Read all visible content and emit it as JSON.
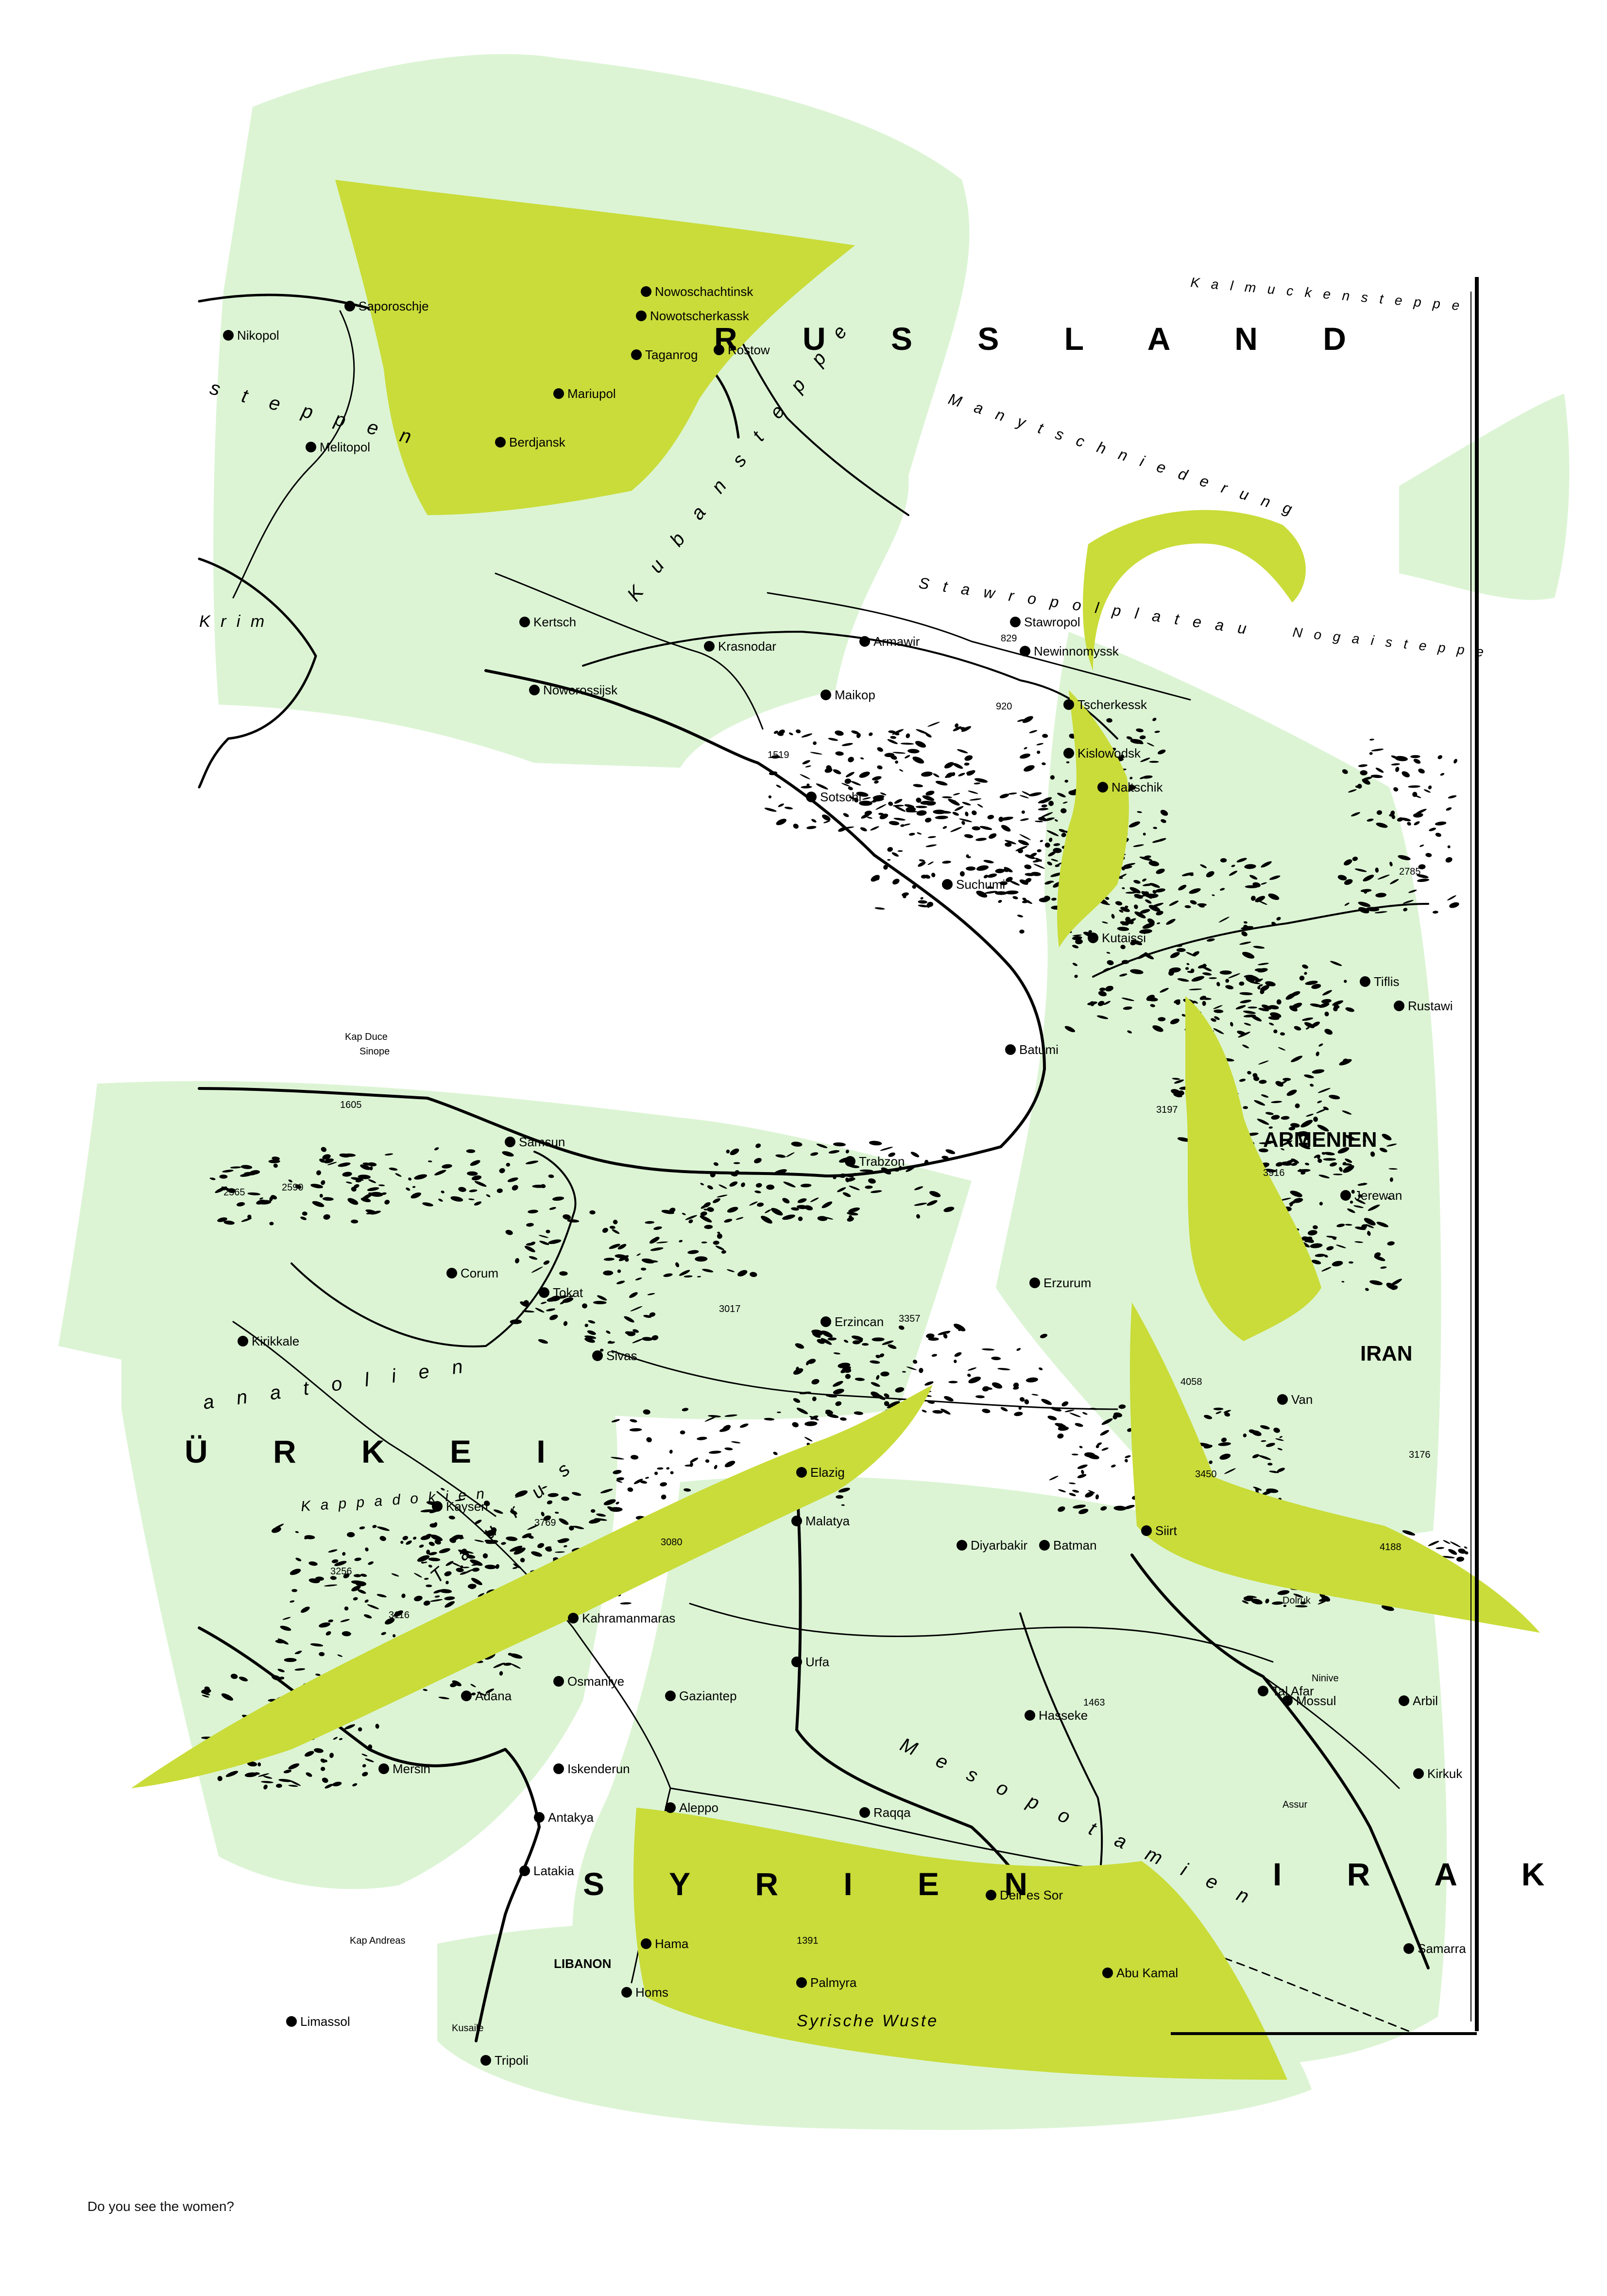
{
  "caption": "Do you see the women?",
  "colors": {
    "pale_green": "#dcf4d4",
    "lime": "#c9dc39",
    "ink": "#000000",
    "paper": "#ffffff"
  },
  "map": {
    "countries": {
      "russia": "R U S S L A N D",
      "turkey": "Ü R K E I",
      "syria": "S Y R I E N",
      "iraq": "I R A K",
      "iran": "IRAN",
      "armenia": "ARMENIEN",
      "lebanon": "LIBANON"
    },
    "regions": {
      "kuban_steppe": "K u b a n s t e p p e",
      "stavropol": "S t a w r o p o l p l a t e a u",
      "manytsch": "M a n y t s c h n i e d e r u n g",
      "kalmyk": "K a l m u c k e n s t e p p e",
      "nogai": "N o g a i s t e p p e",
      "steppe_w": "s t e p p e n",
      "anatolia": "a n a t o l i e n",
      "kappadokien": "K a p p a d o k i e n",
      "taurus": "T a u r u s",
      "mesopotamia": "M e s o p o t a m i e n",
      "syrian_desert": "Syrische Wuste",
      "krim": "K r i m"
    },
    "cities": [
      {
        "name": "Nowotscherkassk"
      },
      {
        "name": "Nowoschachtinsk"
      },
      {
        "name": "Rostow"
      },
      {
        "name": "Taganrog"
      },
      {
        "name": "Mariupol"
      },
      {
        "name": "Berdjansk"
      },
      {
        "name": "Melitopol"
      },
      {
        "name": "Saporoschje"
      },
      {
        "name": "Nikopol"
      },
      {
        "name": "Kertsch"
      },
      {
        "name": "Krasnodar"
      },
      {
        "name": "Noworossijsk"
      },
      {
        "name": "Maikop"
      },
      {
        "name": "Armawir"
      },
      {
        "name": "Stawropol"
      },
      {
        "name": "Newinnomyssk"
      },
      {
        "name": "Tscherkessk"
      },
      {
        "name": "Kislowodsk"
      },
      {
        "name": "Naltschik"
      },
      {
        "name": "Sotschi"
      },
      {
        "name": "Suchumi"
      },
      {
        "name": "Kutaissi"
      },
      {
        "name": "Batumi"
      },
      {
        "name": "Tiflis"
      },
      {
        "name": "Rustawi"
      },
      {
        "name": "Jerewan"
      },
      {
        "name": "Trabzon"
      },
      {
        "name": "Samsun"
      },
      {
        "name": "Erzurum"
      },
      {
        "name": "Erzincan"
      },
      {
        "name": "Sivas"
      },
      {
        "name": "Kayseri"
      },
      {
        "name": "Malatya"
      },
      {
        "name": "Elazig"
      },
      {
        "name": "Diyarbakir"
      },
      {
        "name": "Batman"
      },
      {
        "name": "Siirt"
      },
      {
        "name": "Van"
      },
      {
        "name": "Adana"
      },
      {
        "name": "Mersin"
      },
      {
        "name": "Iskenderun"
      },
      {
        "name": "Antakya"
      },
      {
        "name": "Gaziantep"
      },
      {
        "name": "Urfa"
      },
      {
        "name": "Aleppo"
      },
      {
        "name": "Raqqa"
      },
      {
        "name": "Hama"
      },
      {
        "name": "Homs"
      },
      {
        "name": "Mossul"
      },
      {
        "name": "Arbil"
      },
      {
        "name": "Kirkuk"
      },
      {
        "name": "Samarra"
      },
      {
        "name": "Kirikkale"
      },
      {
        "name": "Corum"
      },
      {
        "name": "Tokat"
      },
      {
        "name": "Kahramanmaras"
      },
      {
        "name": "Osmaniye"
      },
      {
        "name": "Limassol"
      },
      {
        "name": "Latakia"
      },
      {
        "name": "Tripoli"
      },
      {
        "name": "Palmyra"
      },
      {
        "name": "Deir es Sor"
      },
      {
        "name": "Abu Kamal"
      },
      {
        "name": "Tal Afar"
      },
      {
        "name": "Hasseke"
      }
    ],
    "peaks": [
      "3197",
      "3450",
      "4058",
      "3916",
      "3017",
      "3357",
      "3256",
      "3116",
      "2590",
      "3080",
      "1519",
      "1391",
      "1463",
      "920",
      "829",
      "4188",
      "3176",
      "3769",
      "2785",
      "1605",
      "2565"
    ],
    "misc": [
      "Kap Andreas",
      "Sinope",
      "Kap Duce",
      "Dolruk",
      "Ninive",
      "Assur",
      "Kusaile"
    ]
  }
}
